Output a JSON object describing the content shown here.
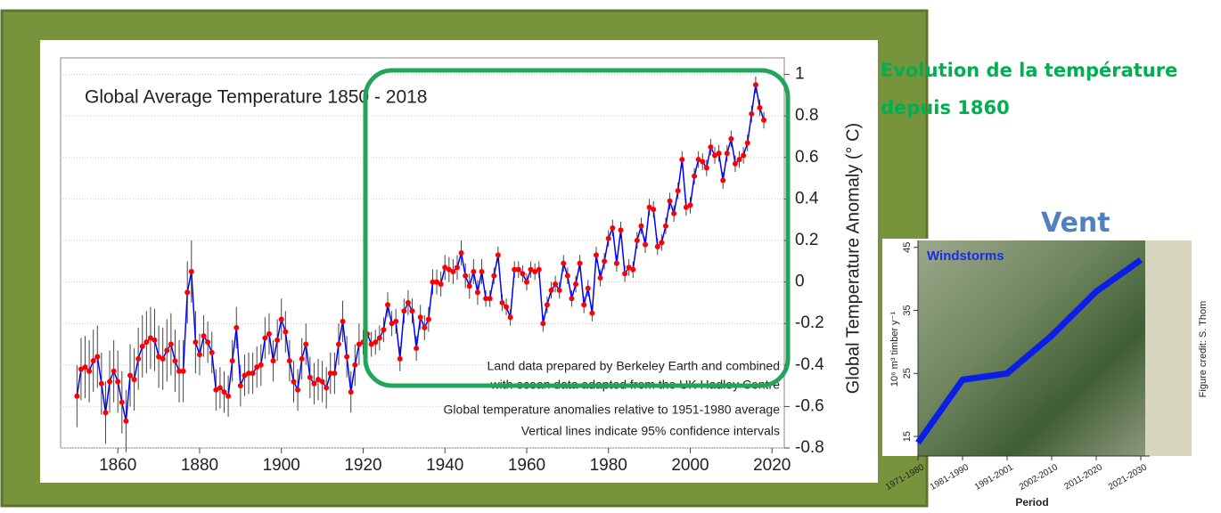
{
  "slide": {
    "heading": "Evolution de la température depuis 1860",
    "wind_heading": "Vent"
  },
  "chart_data": [
    {
      "type": "line",
      "title": "Global Average Temperature 1850 - 2018",
      "y_label": "Global Temperature Anomaly (° C)",
      "annotations": [
        "Land data prepared by Berkeley Earth and combined",
        "with ocean data adapted from the UK Hadley Centre",
        "Global temperature anomalies relative to 1951-1980 average",
        "Vertical lines indicate 95% confidence intervals"
      ],
      "x": [
        1850,
        1851,
        1852,
        1853,
        1854,
        1855,
        1856,
        1857,
        1858,
        1859,
        1860,
        1861,
        1862,
        1863,
        1864,
        1865,
        1866,
        1867,
        1868,
        1869,
        1870,
        1871,
        1872,
        1873,
        1874,
        1875,
        1876,
        1877,
        1878,
        1879,
        1880,
        1881,
        1882,
        1883,
        1884,
        1885,
        1886,
        1887,
        1888,
        1889,
        1890,
        1891,
        1892,
        1893,
        1894,
        1895,
        1896,
        1897,
        1898,
        1899,
        1900,
        1901,
        1902,
        1903,
        1904,
        1905,
        1906,
        1907,
        1908,
        1909,
        1910,
        1911,
        1912,
        1913,
        1914,
        1915,
        1916,
        1917,
        1918,
        1919,
        1920,
        1921,
        1922,
        1923,
        1924,
        1925,
        1926,
        1927,
        1928,
        1929,
        1930,
        1931,
        1932,
        1933,
        1934,
        1935,
        1936,
        1937,
        1938,
        1939,
        1940,
        1941,
        1942,
        1943,
        1944,
        1945,
        1946,
        1947,
        1948,
        1949,
        1950,
        1951,
        1952,
        1953,
        1954,
        1955,
        1956,
        1957,
        1958,
        1959,
        1960,
        1961,
        1962,
        1963,
        1964,
        1965,
        1966,
        1967,
        1968,
        1969,
        1970,
        1971,
        1972,
        1973,
        1974,
        1975,
        1976,
        1977,
        1978,
        1979,
        1980,
        1981,
        1982,
        1983,
        1984,
        1985,
        1986,
        1987,
        1988,
        1989,
        1990,
        1991,
        1992,
        1993,
        1994,
        1995,
        1996,
        1997,
        1998,
        1999,
        2000,
        2001,
        2002,
        2003,
        2004,
        2005,
        2006,
        2007,
        2008,
        2009,
        2010,
        2011,
        2012,
        2013,
        2014,
        2015,
        2016,
        2017,
        2018
      ],
      "series": [
        {
          "color": "#0000ff",
          "marker_color": "#ff0000",
          "error_color": "#444444",
          "values": [
            -0.55,
            -0.42,
            -0.41,
            -0.43,
            -0.38,
            -0.36,
            -0.49,
            -0.63,
            -0.48,
            -0.43,
            -0.48,
            -0.58,
            -0.67,
            -0.45,
            -0.47,
            -0.37,
            -0.31,
            -0.29,
            -0.27,
            -0.28,
            -0.36,
            -0.37,
            -0.33,
            -0.3,
            -0.38,
            -0.43,
            -0.43,
            -0.05,
            0.05,
            -0.29,
            -0.35,
            -0.26,
            -0.29,
            -0.34,
            -0.52,
            -0.51,
            -0.53,
            -0.55,
            -0.38,
            -0.22,
            -0.5,
            -0.45,
            -0.44,
            -0.44,
            -0.41,
            -0.4,
            -0.27,
            -0.25,
            -0.38,
            -0.28,
            -0.18,
            -0.24,
            -0.38,
            -0.48,
            -0.52,
            -0.37,
            -0.3,
            -0.46,
            -0.49,
            -0.47,
            -0.48,
            -0.51,
            -0.44,
            -0.44,
            -0.3,
            -0.19,
            -0.36,
            -0.53,
            -0.4,
            -0.3,
            -0.29,
            -0.25,
            -0.3,
            -0.29,
            -0.27,
            -0.23,
            -0.11,
            -0.2,
            -0.19,
            -0.37,
            -0.14,
            -0.1,
            -0.14,
            -0.32,
            -0.17,
            -0.22,
            -0.18,
            0,
            0,
            -0.01,
            0.07,
            0.06,
            0.05,
            0.07,
            0.14,
            0.03,
            -0.02,
            0.05,
            -0.05,
            0.05,
            -0.08,
            -0.08,
            0.03,
            0.13,
            -0.1,
            -0.12,
            -0.17,
            0.06,
            0.06,
            0.04,
            0,
            0.06,
            0.05,
            0.06,
            -0.2,
            -0.11,
            -0.04,
            -0.01,
            -0.04,
            0.09,
            0.03,
            -0.08,
            -0.01,
            0.09,
            -0.11,
            -0.03,
            -0.15,
            0.13,
            0.02,
            0.1,
            0.21,
            0.26,
            0.09,
            0.25,
            0.04,
            0.07,
            0.06,
            0.2,
            0.27,
            0.18,
            0.36,
            0.35,
            0.17,
            0.19,
            0.27,
            0.39,
            0.33,
            0.44,
            0.59,
            0.36,
            0.37,
            0.51,
            0.59,
            0.58,
            0.55,
            0.65,
            0.61,
            0.62,
            0.49,
            0.62,
            0.69,
            0.57,
            0.59,
            0.61,
            0.67,
            0.81,
            0.95,
            0.84,
            0.78
          ],
          "errors": [
            0.15,
            0.15,
            0.15,
            0.15,
            0.15,
            0.15,
            0.15,
            0.15,
            0.15,
            0.15,
            0.15,
            0.15,
            0.15,
            0.15,
            0.15,
            0.15,
            0.15,
            0.15,
            0.15,
            0.15,
            0.15,
            0.15,
            0.15,
            0.15,
            0.15,
            0.15,
            0.15,
            0.15,
            0.15,
            0.15,
            0.1,
            0.1,
            0.1,
            0.1,
            0.1,
            0.1,
            0.1,
            0.1,
            0.1,
            0.1,
            0.1,
            0.1,
            0.1,
            0.1,
            0.1,
            0.1,
            0.1,
            0.1,
            0.1,
            0.1,
            0.1,
            0.1,
            0.1,
            0.1,
            0.1,
            0.1,
            0.1,
            0.1,
            0.1,
            0.1,
            0.1,
            0.1,
            0.1,
            0.1,
            0.1,
            0.1,
            0.1,
            0.1,
            0.1,
            0.1,
            0.06,
            0.06,
            0.06,
            0.06,
            0.06,
            0.06,
            0.06,
            0.06,
            0.06,
            0.06,
            0.06,
            0.06,
            0.06,
            0.06,
            0.06,
            0.06,
            0.06,
            0.06,
            0.06,
            0.06,
            0.06,
            0.06,
            0.06,
            0.06,
            0.06,
            0.06,
            0.06,
            0.06,
            0.06,
            0.06,
            0.04,
            0.04,
            0.04,
            0.04,
            0.04,
            0.04,
            0.04,
            0.04,
            0.04,
            0.04,
            0.04,
            0.04,
            0.04,
            0.04,
            0.04,
            0.04,
            0.04,
            0.04,
            0.04,
            0.04,
            0.04,
            0.04,
            0.04,
            0.04,
            0.04,
            0.04,
            0.04,
            0.04,
            0.04,
            0.04,
            0.04,
            0.04,
            0.04,
            0.04,
            0.04,
            0.04,
            0.04,
            0.04,
            0.04,
            0.04,
            0.04,
            0.04,
            0.04,
            0.04,
            0.04,
            0.04,
            0.04,
            0.04,
            0.04,
            0.04,
            0.04,
            0.04,
            0.04,
            0.04,
            0.04,
            0.04,
            0.04,
            0.04,
            0.04,
            0.04,
            0.04,
            0.04,
            0.04,
            0.04,
            0.04,
            0.04,
            0.04,
            0.04,
            0.04
          ]
        }
      ],
      "xlim": [
        1846,
        2023
      ],
      "ylim": [
        -0.8,
        1.08
      ],
      "xticks": [
        1860,
        1880,
        1900,
        1920,
        1940,
        1960,
        1980,
        2000,
        2020
      ],
      "yticks": [
        -0.8,
        -0.6,
        -0.4,
        -0.2,
        0,
        0.2,
        0.4,
        0.6,
        0.8,
        1
      ],
      "grid": true
    },
    {
      "type": "line",
      "title": "Windstorms",
      "x_label": "Period",
      "y_label": "10⁶ m³ timber y⁻¹",
      "note": "Figure credit: S. Thom",
      "categories": [
        "1971-1980",
        "1981-1990",
        "1991-2001",
        "2002-2010",
        "2011-2020",
        "2021-2030"
      ],
      "series": [
        {
          "color": "#0a1ee6",
          "values": [
            14,
            24,
            25,
            31,
            38,
            43
          ]
        }
      ],
      "ylim": [
        11.9,
        46.1
      ],
      "yticks": [
        15,
        25,
        35,
        45
      ]
    }
  ]
}
